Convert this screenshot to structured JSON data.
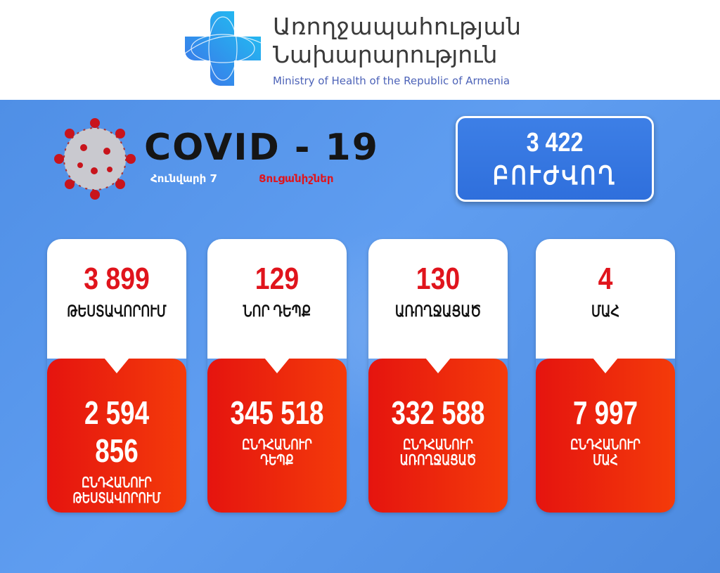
{
  "header": {
    "org_line1": "Առողջապահության",
    "org_line2": "Նախարարություն",
    "org_english": "Ministry of Health of the Republic of Armenia"
  },
  "title": {
    "heading": "COVID - 19",
    "date": "Հունվարի 7",
    "subtitle": "Ցուցանիշներ"
  },
  "recovered_badge": {
    "value": "3 422",
    "label": "ԲՈՒԺՎՈՂ"
  },
  "cards": [
    {
      "daily_value": "3 899",
      "daily_label": "ԹԵՍՏԱՎՈՐՈՒՄ",
      "total_value": "2 594 856",
      "total_label1": "ԸՆԴՀԱՆՈՒՐ",
      "total_label2": "ԹԵՍՏԱՎՈՐՈՒՄ"
    },
    {
      "daily_value": "129",
      "daily_label": "ՆՈՐ ԴԵՊՔ",
      "total_value": "345 518",
      "total_label1": "ԸՆԴՀԱՆՈՒՐ",
      "total_label2": "ԴԵՊՔ"
    },
    {
      "daily_value": "130",
      "daily_label": "ԱՌՈՂՋԱՑԱԾ",
      "total_value": "332 588",
      "total_label1": "ԸՆԴՀԱՆՈՒՐ",
      "total_label2": "ԱՌՈՂՋԱՑԱԾ"
    },
    {
      "daily_value": "4",
      "daily_label": "ՄԱՀ",
      "total_value": "7 997",
      "total_label1": "ԸՆԴՀԱՆՈՒՐ",
      "total_label2": "ՄԱՀ"
    }
  ],
  "colors": {
    "accent_red": "#e5140f",
    "background_blue": "#5f9df0",
    "badge_blue": "#2f6fdc"
  }
}
